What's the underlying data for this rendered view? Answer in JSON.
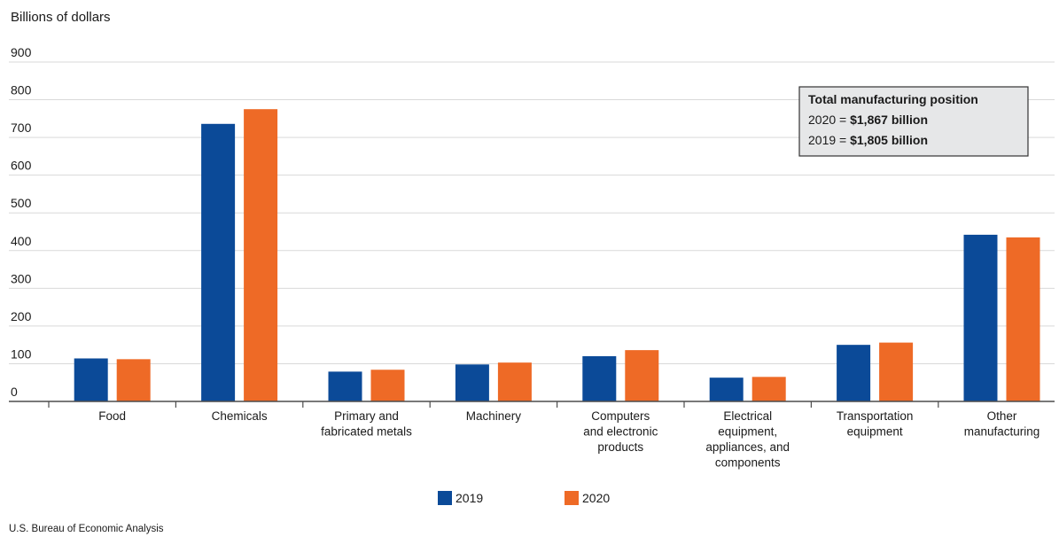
{
  "chart_data": {
    "type": "bar",
    "ylabel": "Billions of dollars",
    "ylim": [
      0,
      900
    ],
    "yticks": [
      0,
      100,
      200,
      300,
      400,
      500,
      600,
      700,
      800,
      900
    ],
    "grid": true,
    "categories": [
      [
        "Food"
      ],
      [
        "Chemicals"
      ],
      [
        "Primary and",
        "fabricated metals"
      ],
      [
        "Machinery"
      ],
      [
        "Computers",
        "and electronic",
        "products"
      ],
      [
        "Electrical",
        "equipment,",
        "appliances, and",
        "components"
      ],
      [
        "Transportation",
        "equipment"
      ],
      [
        "Other",
        "manufacturing"
      ]
    ],
    "series": [
      {
        "name": "2019",
        "color": "#0b4a98",
        "values": [
          114,
          736,
          79,
          98,
          120,
          63,
          150,
          442
        ]
      },
      {
        "name": "2020",
        "color": "#ee6a26",
        "values": [
          112,
          775,
          84,
          103,
          136,
          65,
          156,
          435
        ]
      }
    ],
    "legend_position": "bottom-center",
    "annotation": {
      "title": "Total manufacturing position",
      "lines": [
        {
          "prefix": "2020 = ",
          "value": "$1,867 billion"
        },
        {
          "prefix": "2019 = ",
          "value": "$1,805 billion"
        }
      ]
    }
  },
  "source": "U.S. Bureau of Economic Analysis"
}
